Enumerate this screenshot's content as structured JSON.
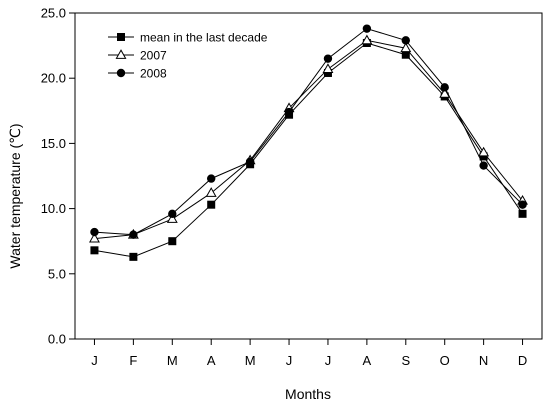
{
  "chart_data": {
    "type": "line",
    "xlabel": "Months",
    "ylabel": "Water temperature (℃)",
    "categories": [
      "J",
      "F",
      "M",
      "A",
      "M",
      "J",
      "J",
      "A",
      "S",
      "O",
      "N",
      "D"
    ],
    "ylim": [
      0,
      25
    ],
    "yticks": [
      0,
      5,
      10,
      15,
      20,
      25
    ],
    "ytick_labels": [
      "0.0",
      "5.0",
      "10.0",
      "15.0",
      "20.0",
      "25.0"
    ],
    "grid": false,
    "legend_position": "top-left",
    "series": [
      {
        "name": "mean in the last decade",
        "marker": "filled-square",
        "values": [
          6.8,
          6.3,
          7.5,
          10.3,
          13.4,
          17.2,
          20.4,
          22.7,
          21.8,
          18.6,
          14.0,
          9.6
        ]
      },
      {
        "name": "2007",
        "marker": "open-triangle",
        "values": [
          7.7,
          8.0,
          9.2,
          11.2,
          13.7,
          17.7,
          20.7,
          22.9,
          22.3,
          18.8,
          14.3,
          10.6
        ]
      },
      {
        "name": "2008",
        "marker": "filled-circle",
        "values": [
          8.2,
          8.0,
          9.6,
          12.3,
          13.6,
          17.4,
          21.5,
          23.8,
          22.9,
          19.3,
          13.3,
          10.3
        ]
      }
    ]
  }
}
